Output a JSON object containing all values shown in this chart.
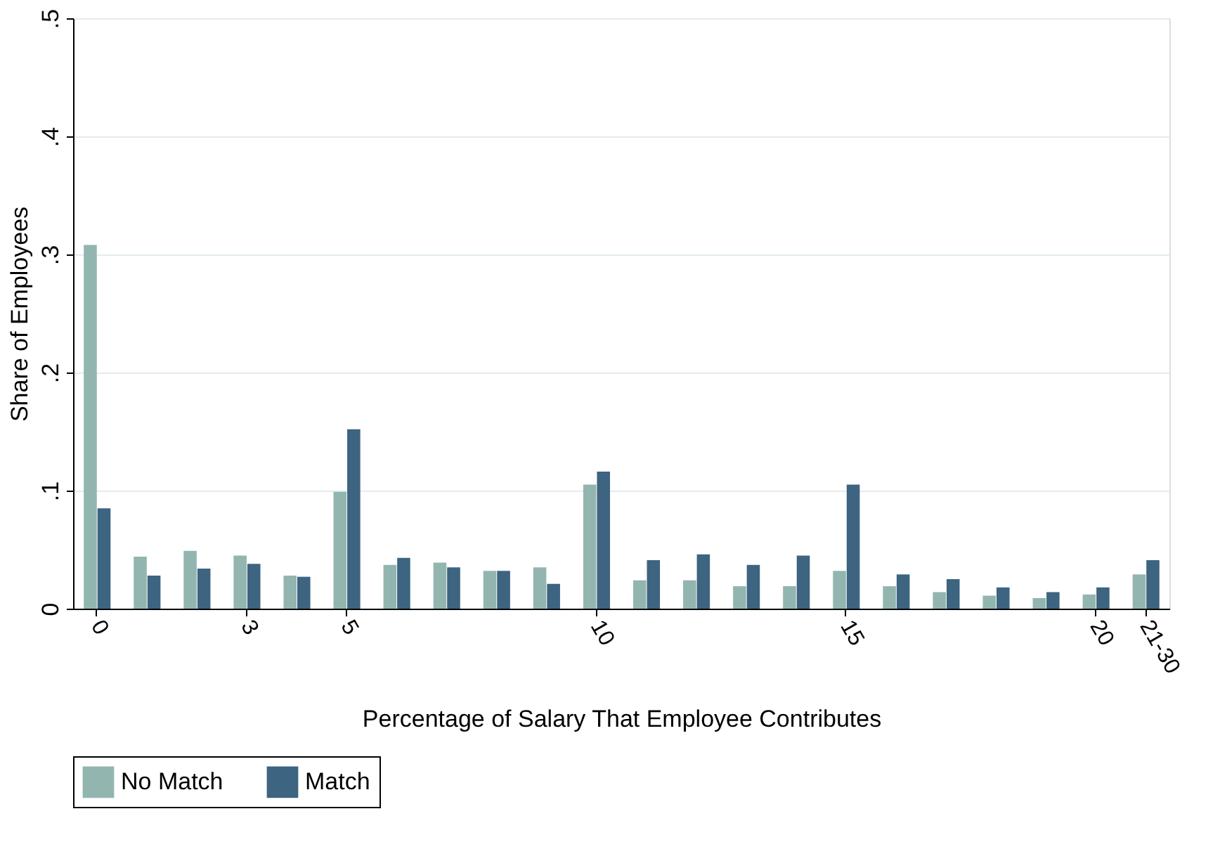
{
  "chart_data": {
    "type": "bar",
    "xlabel": "Percentage of Salary That Employee Contributes",
    "ylabel": "Share of Employees",
    "categories": [
      "0",
      null,
      null,
      "3",
      null,
      "5",
      null,
      null,
      null,
      null,
      "10",
      null,
      null,
      null,
      null,
      "15",
      null,
      null,
      null,
      null,
      "20",
      "21-30"
    ],
    "series": [
      {
        "name": "No Match",
        "color": "#93b5b0",
        "values": [
          0.308,
          0.044,
          0.049,
          0.045,
          0.028,
          0.099,
          0.037,
          0.039,
          0.032,
          0.035,
          0.105,
          0.024,
          0.024,
          0.019,
          0.019,
          0.032,
          0.019,
          0.014,
          0.011,
          0.009,
          0.012,
          0.029
        ]
      },
      {
        "name": "Match",
        "color": "#3d6480",
        "values": [
          0.085,
          0.028,
          0.034,
          0.038,
          0.027,
          0.152,
          0.043,
          0.035,
          0.032,
          0.021,
          0.116,
          0.041,
          0.046,
          0.037,
          0.045,
          0.105,
          0.029,
          0.025,
          0.018,
          0.014,
          0.018,
          0.041
        ]
      }
    ],
    "ylim": [
      0,
      0.5
    ],
    "yticks": [
      0,
      {
        "value": 0.1,
        "label": ".1"
      },
      {
        "value": 0.2,
        "label": ".2"
      },
      {
        "value": 0.3,
        "label": ".3"
      },
      {
        "value": 0.4,
        "label": ".4"
      },
      {
        "value": 0.5,
        "label": ".5"
      }
    ],
    "grid": "y",
    "legend": "bottom"
  }
}
